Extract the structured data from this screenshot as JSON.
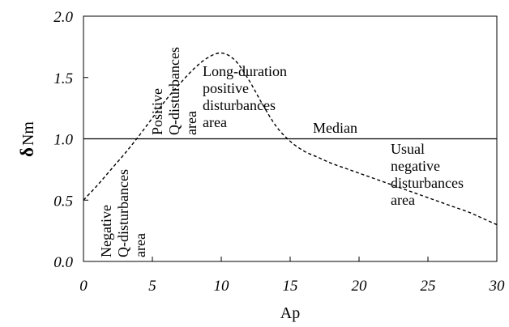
{
  "chart_data": {
    "type": "line",
    "title": "",
    "xlabel": "Ap",
    "ylabel_symbol": "δ",
    "ylabel_text": "Nm",
    "xlim": [
      0,
      30
    ],
    "ylim": [
      0.0,
      2.0
    ],
    "xticks": [
      0,
      5,
      10,
      15,
      20,
      25,
      30
    ],
    "xtick_labels": [
      "0",
      "5",
      "10",
      "15",
      "20",
      "25",
      "30"
    ],
    "yticks": [
      0.0,
      0.5,
      1.0,
      1.5,
      2.0
    ],
    "ytick_labels": [
      "0.0",
      "0.5",
      "1.0",
      "1.5",
      "2.0"
    ],
    "grid": false,
    "series": [
      {
        "style": "dashed",
        "x": [
          0,
          1,
          2,
          3,
          4,
          5,
          6,
          7,
          8,
          9,
          10,
          11,
          12,
          13,
          14,
          15,
          16,
          17,
          18,
          19,
          20,
          21,
          22,
          23,
          24,
          25,
          26,
          27,
          28,
          29,
          30
        ],
        "y": [
          0.5,
          0.62,
          0.75,
          0.88,
          1.02,
          1.17,
          1.32,
          1.45,
          1.57,
          1.66,
          1.7,
          1.64,
          1.48,
          1.28,
          1.1,
          0.98,
          0.9,
          0.85,
          0.8,
          0.76,
          0.72,
          0.68,
          0.64,
          0.6,
          0.56,
          0.52,
          0.48,
          0.44,
          0.4,
          0.35,
          0.3
        ]
      }
    ],
    "reference_line": {
      "y": 1.0,
      "label": "Median"
    },
    "annotations": [
      {
        "lines": [
          "Negative",
          "Q-disturbances",
          "area"
        ],
        "rotated": true
      },
      {
        "lines": [
          "Positive",
          "Q-disturbances",
          "area"
        ],
        "rotated": true
      },
      {
        "lines": [
          "Long-duration",
          "positive",
          "disturbances",
          "area"
        ],
        "rotated": false
      },
      {
        "lines": [
          "Usual",
          "negative",
          "disturbances",
          "area"
        ],
        "rotated": false
      }
    ]
  }
}
